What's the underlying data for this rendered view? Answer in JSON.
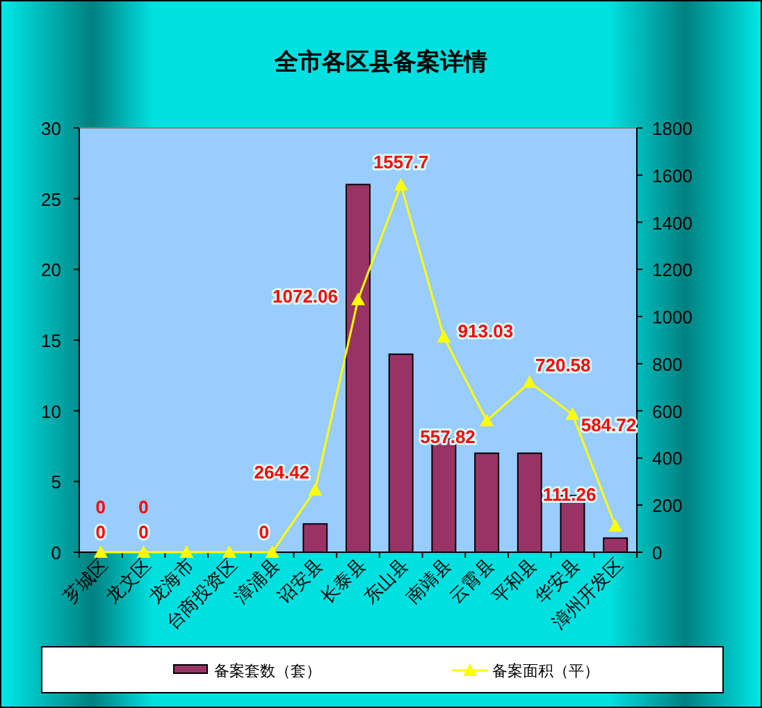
{
  "chart_data": {
    "type": "bar",
    "title": "全市各区县备案详情",
    "categories": [
      "芗城区",
      "龙文区",
      "龙海市",
      "台商投资区",
      "漳浦县",
      "诏安县",
      "长泰县",
      "东山县",
      "南靖县",
      "云霄县",
      "平和县",
      "华安县",
      "漳州开发区"
    ],
    "series": [
      {
        "name": "备案套数（套）",
        "color": "#993366",
        "values": [
          0,
          0,
          0,
          0,
          0,
          2,
          26,
          14,
          8,
          7,
          7,
          4,
          1
        ],
        "value_labels": [
          "0",
          "0",
          null,
          null,
          null,
          null,
          null,
          null,
          null,
          null,
          null,
          null,
          null
        ]
      },
      {
        "name": "备案面积（平）",
        "type": "line",
        "axis": "y2",
        "color": "#ffff00",
        "marker": "triangle",
        "values": [
          0,
          0,
          0,
          0,
          0,
          264.42,
          1072.06,
          1557.7,
          913.03,
          557.82,
          720.58,
          584.72,
          111.26
        ],
        "value_labels": [
          "0",
          "0",
          null,
          null,
          "0",
          "264.42",
          "1072.06",
          "1557.7",
          "913.03",
          "557.82",
          "720.58",
          "584.72",
          "111.26"
        ]
      }
    ],
    "ylim": [
      0,
      30
    ],
    "yticks": [
      0,
      5,
      10,
      15,
      20,
      25,
      30
    ],
    "y2lim": [
      0,
      1800
    ],
    "y2ticks": [
      0,
      200,
      400,
      600,
      800,
      1000,
      1200,
      1400,
      1600,
      1800
    ],
    "legend": "bottom"
  }
}
